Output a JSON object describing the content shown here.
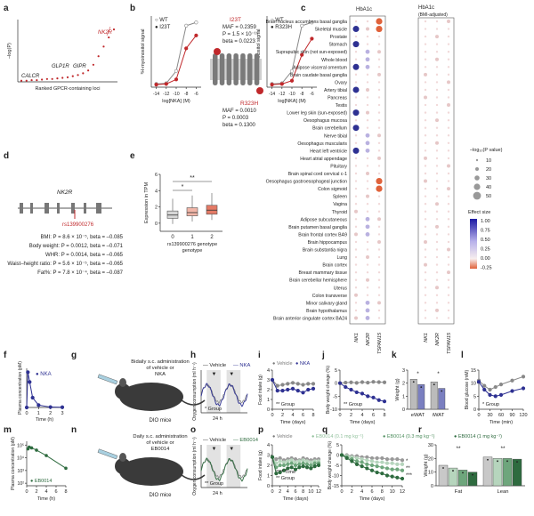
{
  "panel_letters": [
    "a",
    "b",
    "c",
    "d",
    "e",
    "f",
    "g",
    "h",
    "i",
    "j",
    "k",
    "l",
    "m",
    "n",
    "o",
    "p",
    "q",
    "r"
  ],
  "colors": {
    "red": "#c0282b",
    "navy": "#2e3192",
    "green": "#2e6b3f",
    "gray": "#9a9a9a",
    "lightgray": "#d9d9d9",
    "pink": "#f2b6a8",
    "shade": "#dcdcdc"
  },
  "chart_data": [
    {
      "panel": "a",
      "type": "scatter",
      "ylabel": "–log(P)",
      "xlabel": "Ranked GPCR-containing loci",
      "annotations": [
        "NK2R",
        "CALCR",
        "GLP1R",
        "GIPR"
      ],
      "y": [
        0.02,
        0.02,
        0.03,
        0.03,
        0.04,
        0.05,
        0.05,
        0.06,
        0.07,
        0.08,
        0.1,
        0.12,
        0.15,
        0.2,
        0.3,
        0.45,
        0.62,
        0.78,
        0.92
      ]
    },
    {
      "panel": "b-left",
      "type": "line",
      "xlabel": "log[NKA] (M)",
      "ylabel": "³H-myoinositol signal",
      "x": [
        -14,
        -12,
        -10,
        -8,
        -6
      ],
      "series": [
        {
          "name": "WT",
          "values": [
            0.05,
            0.06,
            0.25,
            0.95,
            1.0
          ]
        },
        {
          "name": "I23T",
          "values": [
            0.04,
            0.05,
            0.12,
            0.6,
            0.8
          ]
        }
      ]
    },
    {
      "panel": "b-middle",
      "type": "table",
      "variants": [
        {
          "name": "I23T",
          "stats": [
            "MAF = 0.2359",
            "P = 1.5 × 10⁻¹⁶",
            "beta = 0.0223"
          ]
        },
        {
          "name": "R323H",
          "stats": [
            "MAF = 0.0010",
            "P = 0.0003",
            "beta = 0.1300"
          ]
        }
      ]
    },
    {
      "panel": "b-right",
      "type": "line",
      "xlabel": "log[NKA] (M)",
      "ylabel": "³H-myoinositol signal",
      "x": [
        -14,
        -12,
        -10,
        -8,
        -6
      ],
      "series": [
        {
          "name": "WT",
          "values": [
            0.05,
            0.06,
            0.25,
            0.95,
            1.0
          ]
        },
        {
          "name": "R323H",
          "values": [
            0.04,
            0.05,
            0.1,
            0.5,
            0.75
          ]
        }
      ]
    },
    {
      "panel": "c",
      "type": "scatter",
      "column_groups": [
        "HbA1c",
        "HbA1c (BMI-adjusted)"
      ],
      "columns": [
        "NK1",
        "NK2R",
        "TSPAN15"
      ],
      "tissues": [
        "Brain nucleus accumbens basal ganglia",
        "Skeletal muscle",
        "Prostate",
        "Stomach",
        "Suprapubic skin (not sun-exposed)",
        "Whole blood",
        "Adipose visceral omentum",
        "Brain caudate basal ganglia",
        "Ovary",
        "Artery tibial",
        "Pancreas",
        "Testis",
        "Lower leg skin (sun-exposed)",
        "Oesophagus mucosa",
        "Brain cerebellum",
        "Nerve tibial",
        "Oesophagus muscularis",
        "Heart left ventricle",
        "Heart atrial appendage",
        "Pituitary",
        "Brain spinal cord cervical c-1",
        "Oesophagus gastroesophageal junction",
        "Colon sigmoid",
        "Spleen",
        "Vagina",
        "Thyroid",
        "Adipose subcutaneous",
        "Brain putamen basal ganglia",
        "Brain frontal cortex BA9",
        "Brain hippocampus",
        "Brain substantia nigra",
        "Lung",
        "Brain cortex",
        "Breast mammary tissue",
        "Brain cerebellar hemisphere",
        "Uterus",
        "Colon transverse",
        "Minor salivary gland",
        "Brain hypothalamus",
        "Brain anterior cingulate cortex BA24"
      ],
      "size_legend_title": "–log₁₀(P value)",
      "size_legend": [
        10,
        20,
        30,
        40,
        50
      ],
      "color_legend_title": "Effect size",
      "color_legend": [
        1.0,
        0.75,
        0.5,
        0.25,
        0.0,
        -0.25
      ]
    },
    {
      "panel": "d",
      "type": "table",
      "gene": "NK2R",
      "snp": "rs139900276",
      "associations": [
        "BMI: P = 8.6 × 10⁻⁵, beta = –0.085",
        "Body weight: P = 0.0012, beta = –0.071",
        "WHR: P = 0.0014, beta = –0.065",
        "Waist–height ratio: P = 5.6 × 10⁻⁵, beta = –0.065",
        "Fat%: P = 7.8 × 10⁻⁴, beta = –0.087"
      ]
    },
    {
      "panel": "e",
      "type": "bar",
      "ylabel": "Expression in TPM",
      "xlabel": "rs139900276 genotype",
      "categories": [
        "0",
        "1",
        "2"
      ],
      "medians": [
        1.0,
        1.3,
        1.6
      ],
      "q1": [
        0.6,
        0.9,
        1.1
      ],
      "q3": [
        1.5,
        1.9,
        2.2
      ],
      "ylim": [
        -1,
        6
      ],
      "yticks": [
        0,
        2,
        4,
        6
      ],
      "significance": [
        "*",
        "**"
      ]
    },
    {
      "panel": "f",
      "type": "line",
      "ylabel": "Plasma concentration (pM)",
      "xlabel": "Time (h)",
      "series": [
        {
          "name": "NKA",
          "x": [
            0,
            0.1,
            0.25,
            0.5,
            1,
            2,
            3
          ],
          "values": [
            0,
            900,
            650,
            250,
            60,
            10,
            5
          ]
        }
      ],
      "xticks": [
        0,
        1,
        2,
        3
      ]
    },
    {
      "panel": "g",
      "type": "table",
      "caption": "Bidaily s.c. administration of vehicle or NKA",
      "label": "DIO mice"
    },
    {
      "panel": "h",
      "type": "line",
      "ylabel": "Oxygen consumption (ml h⁻¹)",
      "xlabel": "24 h",
      "series_names": [
        "Vehicle",
        "NKA"
      ],
      "stat": "* Group"
    },
    {
      "panel": "i",
      "type": "line",
      "ylabel": "Food intake (g)",
      "xlabel": "Time (days)",
      "x": [
        0,
        1,
        2,
        3,
        4,
        5,
        6,
        7,
        8
      ],
      "series": [
        {
          "name": "Vehicle",
          "values": [
            3.0,
            2.4,
            2.5,
            2.6,
            2.7,
            2.6,
            2.5,
            2.6,
            2.6
          ]
        },
        {
          "name": "NKA",
          "values": [
            3.0,
            1.9,
            1.9,
            2.0,
            2.1,
            1.9,
            1.7,
            2.0,
            2.1
          ]
        }
      ],
      "ylim": [
        0,
        4
      ],
      "yticks": [
        0,
        1,
        2,
        3,
        4
      ],
      "xticks": [
        0,
        2,
        4,
        6,
        8
      ],
      "stat": "** Group"
    },
    {
      "panel": "j",
      "type": "line",
      "ylabel": "Body weight change (%)",
      "xlabel": "Time (days)",
      "x": [
        0,
        1,
        2,
        3,
        4,
        5,
        6,
        7,
        8
      ],
      "series": [
        {
          "name": "Vehicle",
          "values": [
            0,
            0.2,
            0.3,
            0.1,
            0.4,
            0.2,
            0.5,
            0.4,
            0.3
          ]
        },
        {
          "name": "NKA",
          "values": [
            0,
            -1.5,
            -2.5,
            -3.5,
            -4.0,
            -5.0,
            -5.5,
            -6.5,
            -7.0
          ]
        }
      ],
      "ylim": [
        -10,
        5
      ],
      "yticks": [
        -10,
        -5,
        0,
        5
      ],
      "xticks": [
        0,
        2,
        4,
        6,
        8
      ],
      "stat": "** Group"
    },
    {
      "panel": "k",
      "type": "bar",
      "ylabel": "Weight (g)",
      "categories": [
        "eWAT",
        "iWAT"
      ],
      "series": [
        {
          "name": "Vehicle",
          "values": [
            2.3,
            2.1
          ]
        },
        {
          "name": "NKA",
          "values": [
            1.9,
            1.6
          ]
        }
      ],
      "ylim": [
        0,
        3
      ],
      "yticks": [
        0,
        1,
        2,
        3
      ],
      "significance": [
        "*",
        "*"
      ]
    },
    {
      "panel": "l",
      "type": "line",
      "ylabel": "Blood glucose (mM)",
      "xlabel": "Time (min)",
      "x": [
        0,
        15,
        30,
        45,
        60,
        90,
        120
      ],
      "series": [
        {
          "name": "Vehicle",
          "values": [
            11,
            9,
            7.5,
            8.5,
            9.5,
            11,
            12.5
          ]
        },
        {
          "name": "NKA",
          "values": [
            10.5,
            7.5,
            5.5,
            5,
            5.5,
            7,
            8
          ]
        }
      ],
      "ylim": [
        0,
        15
      ],
      "yticks": [
        0,
        5,
        10,
        15
      ],
      "xticks": [
        0,
        30,
        60,
        90,
        120
      ],
      "stat": "* Group"
    },
    {
      "panel": "m",
      "type": "line",
      "ylabel": "Plasma concentration (pM)",
      "xlabel": "Time (h)",
      "series": [
        {
          "name": "EB0014",
          "x": [
            0.25,
            0.5,
            1,
            2,
            4,
            8
          ],
          "values": [
            50000,
            70000,
            60000,
            40000,
            15000,
            1500
          ]
        }
      ],
      "yscale": "log",
      "yticks": [
        100,
        1000,
        10000,
        100000
      ],
      "ytick_labels": [
        "10²",
        "10³",
        "10⁴",
        "10⁵"
      ],
      "xticks": [
        0,
        2,
        4,
        6,
        8
      ]
    },
    {
      "panel": "n",
      "type": "table",
      "caption": "Daily s.c. administration of vehicle or EB0014",
      "label": "DIO mice"
    },
    {
      "panel": "o",
      "type": "line",
      "ylabel": "Oxygen consumption (ml h⁻¹)",
      "xlabel": "24 h",
      "series_names": [
        "Vehicle",
        "EB0014"
      ],
      "stat": "** Group"
    },
    {
      "panel": "p",
      "type": "line",
      "ylabel": "Food intake (g)",
      "xlabel": "Time (days)",
      "x": [
        0,
        1,
        2,
        3,
        4,
        5,
        6,
        7,
        8,
        9,
        10,
        11,
        12
      ],
      "series": [
        {
          "name": "Vehicle",
          "values": [
            2.8,
            2.6,
            2.7,
            2.5,
            2.6,
            2.7,
            2.6,
            2.5,
            2.7,
            2.6,
            2.5,
            2.6,
            2.6
          ]
        },
        {
          "name": "EB0014 (0.1 mg kg⁻¹)",
          "values": [
            2.8,
            2.2,
            2.4,
            2.3,
            2.4,
            2.5,
            2.3,
            2.4,
            2.5,
            2.4,
            2.3,
            2.4,
            2.4
          ]
        },
        {
          "name": "EB0014 (0.3 mg kg⁻¹)",
          "values": [
            2.8,
            1.8,
            2.0,
            2.0,
            2.1,
            2.2,
            2.0,
            2.1,
            2.2,
            2.1,
            2.0,
            2.2,
            2.2
          ]
        },
        {
          "name": "EB0014 (1 mg kg⁻¹)",
          "values": [
            2.8,
            1.2,
            1.3,
            1.5,
            1.7,
            1.8,
            1.6,
            1.8,
            1.9,
            1.8,
            1.7,
            1.9,
            2.0
          ]
        }
      ],
      "ylim": [
        0,
        4
      ],
      "yticks": [
        0,
        1,
        2,
        3,
        4
      ],
      "xticks": [
        0,
        2,
        4,
        6,
        8,
        10,
        12
      ],
      "stat_lines": [
        "**** Time",
        "** Group"
      ]
    },
    {
      "panel": "q",
      "type": "line",
      "ylabel": "Body weight change (%)",
      "xlabel": "Time (days)",
      "x": [
        0,
        1,
        2,
        3,
        4,
        5,
        6,
        7,
        8,
        9,
        10,
        11,
        12
      ],
      "series": [
        {
          "name": "Vehicle",
          "values": [
            0,
            0,
            -0.5,
            -0.5,
            -1,
            -1,
            -1.5,
            -1.5,
            -1.5,
            -2,
            -2,
            -2,
            -2.5
          ]
        },
        {
          "name": "EB0014 (0.1 mg kg⁻¹)",
          "values": [
            0,
            -0.5,
            -1,
            -1.5,
            -2,
            -2.5,
            -3,
            -3.5,
            -3.5,
            -4,
            -4,
            -4.5,
            -4.5
          ]
        },
        {
          "name": "EB0014 (0.3 mg kg⁻¹)",
          "values": [
            0,
            -1,
            -2,
            -3,
            -3.5,
            -4.5,
            -5,
            -5.5,
            -6,
            -6.5,
            -7,
            -7,
            -7.5
          ]
        },
        {
          "name": "EB0014 (1 mg kg⁻¹)",
          "values": [
            0,
            -1.5,
            -3,
            -4.5,
            -5.5,
            -6.5,
            -7.5,
            -8.5,
            -9,
            -10,
            -10.5,
            -11,
            -11.5
          ]
        }
      ],
      "ylim": [
        -15,
        5
      ],
      "yticks": [
        -15,
        -10,
        -5,
        0,
        5
      ],
      "xticks": [
        0,
        2,
        4,
        6,
        8,
        10,
        12
      ],
      "significance": [
        "*",
        "**",
        "***"
      ]
    },
    {
      "panel": "r",
      "type": "bar",
      "ylabel": "Weight (g)",
      "categories": [
        "Fat",
        "Lean"
      ],
      "series": [
        {
          "name": "Vehicle",
          "values": [
            15,
            21
          ]
        },
        {
          "name": "EB0014 (0.1 mg kg⁻¹)",
          "values": [
            13,
            20
          ]
        },
        {
          "name": "EB0014 (0.3 mg kg⁻¹)",
          "values": [
            11.5,
            20
          ]
        },
        {
          "name": "EB0014 (1 mg kg⁻¹)",
          "values": [
            10,
            19.5
          ]
        }
      ],
      "ylim": [
        0,
        30
      ],
      "yticks": [
        0,
        10,
        20,
        30
      ],
      "significance": [
        "**",
        "**"
      ]
    }
  ]
}
